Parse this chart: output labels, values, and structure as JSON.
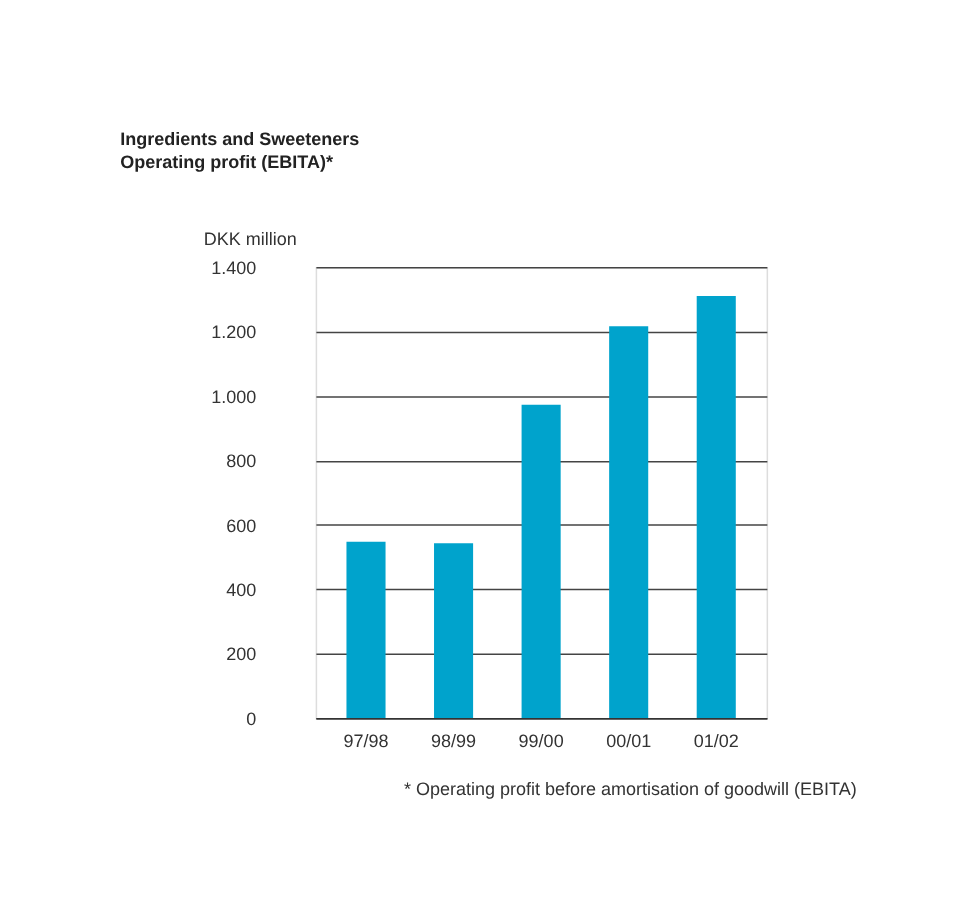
{
  "chart_data": {
    "type": "bar",
    "title": "Ingredients and Sweeteners",
    "subtitle": "Operating profit (EBITA)*",
    "ylabel": "DKK million",
    "categories": [
      "97/98",
      "98/99",
      "99/00",
      "00/01",
      "01/02"
    ],
    "values": [
      547,
      543,
      973,
      1216,
      1310
    ],
    "color": "#00a3cc",
    "ylim": [
      0,
      1400
    ],
    "yticks": [
      0,
      200,
      400,
      600,
      800,
      {
        "value": 1000,
        "label": "1.000"
      },
      {
        "value": 1200,
        "label": "1.200"
      },
      {
        "value": 1400,
        "label": "1.400"
      }
    ],
    "grid": "y",
    "annotations": [
      "* Operating profit before amortisation of goodwill (EBITA)"
    ]
  }
}
